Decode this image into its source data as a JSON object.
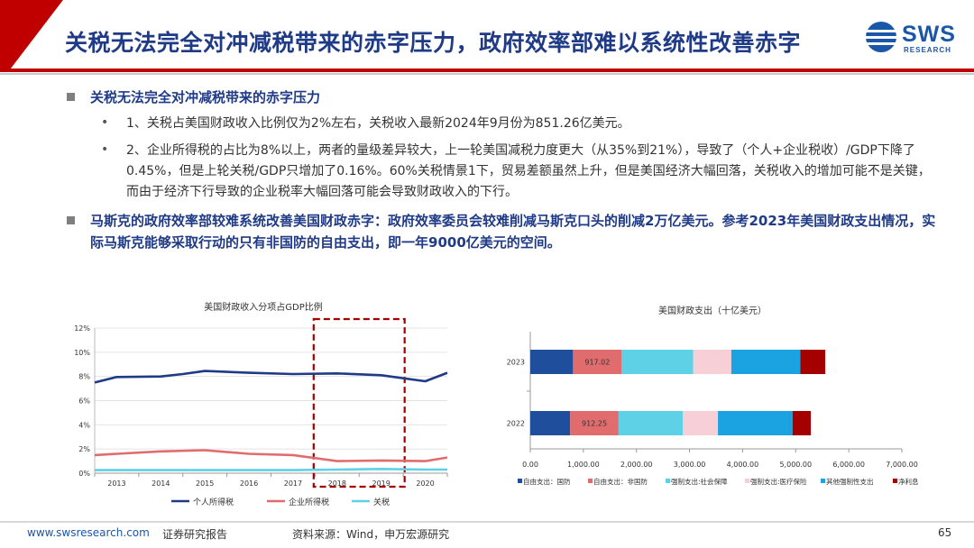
{
  "slide": {
    "title": "关税无法完全对冲减税带来的赤字压力，政府效率部难以系统性改善赤字",
    "logo_text": "SWS",
    "logo_sub": "RESEARCH",
    "page_number": "65",
    "footer_site": "www.swsresearch.com",
    "footer_type": "证券研究报告",
    "footer_source": "资料来源：Wind，申万宏源研究"
  },
  "bullets": [
    {
      "text": "关税无法完全对冲减税带来的赤字压力",
      "sub": [
        "1、关税占美国财政收入比例仅为2%左右，关税收入最新2024年9月份为851.26亿美元。",
        "2、企业所得税的占比为8%以上，两者的量级差异较大，上一轮美国减税力度更大（从35%到21%），导致了（个人+企业税收）/GDP下降了0.45%，但是上轮关税/GDP只增加了0.16%。60%关税情景1下，贸易差额虽然上升，但是美国经济大幅回落，关税收入的增加可能不是关键，而由于经济下行导致的企业税率大幅回落可能会导致财政收入的下行。"
      ]
    },
    {
      "text": "马斯克的政府效率部较难系统改善美国财政赤字：政府效率委员会较难削减马斯克口头的削减2万亿美元。参考2023年美国财政支出情况，实际马斯克能够采取行动的只有非国防的自由支出，即一年9000亿美元的空间。",
      "sub": []
    }
  ],
  "chart_data": [
    {
      "type": "line",
      "title": "美国财政收入分项占GDP比例",
      "x": [
        "2013",
        "2014",
        "2015",
        "2016",
        "2017",
        "2018",
        "2019",
        "2020"
      ],
      "ylim": [
        0,
        12
      ],
      "yticks": [
        "0%",
        "2%",
        "4%",
        "6%",
        "8%",
        "10%",
        "12%"
      ],
      "series": [
        {
          "name": "个人所得税",
          "color": "#1f3a86",
          "points": [
            [
              2012.5,
              7.5
            ],
            [
              2013,
              7.95
            ],
            [
              2014,
              8.0
            ],
            [
              2014.5,
              8.2
            ],
            [
              2015,
              8.45
            ],
            [
              2016,
              8.3
            ],
            [
              2017,
              8.2
            ],
            [
              2018,
              8.25
            ],
            [
              2019,
              8.1
            ],
            [
              2020,
              7.6
            ],
            [
              2020.5,
              8.3
            ]
          ]
        },
        {
          "name": "企业所得税",
          "color": "#e06c6e",
          "points": [
            [
              2012.5,
              1.5
            ],
            [
              2013,
              1.6
            ],
            [
              2014,
              1.8
            ],
            [
              2015,
              1.9
            ],
            [
              2016,
              1.6
            ],
            [
              2017,
              1.5
            ],
            [
              2018,
              1.0
            ],
            [
              2019,
              1.05
            ],
            [
              2020,
              1.0
            ],
            [
              2020.5,
              1.3
            ]
          ]
        },
        {
          "name": "关税",
          "color": "#5fd1e6",
          "points": [
            [
              2012.5,
              0.25
            ],
            [
              2013,
              0.25
            ],
            [
              2014,
              0.25
            ],
            [
              2015,
              0.25
            ],
            [
              2016,
              0.25
            ],
            [
              2017,
              0.25
            ],
            [
              2018,
              0.3
            ],
            [
              2019,
              0.35
            ],
            [
              2020,
              0.3
            ],
            [
              2020.5,
              0.3
            ]
          ]
        }
      ],
      "highlight_range": [
        2018,
        2019
      ]
    },
    {
      "type": "bar",
      "orientation": "horizontal",
      "stacked": true,
      "title": "美国财政支出（十亿美元）",
      "categories": [
        "2023",
        "2022"
      ],
      "xlim": [
        0,
        7000
      ],
      "xticks": [
        "0.00",
        "1,000.00",
        "2,000.00",
        "3,000.00",
        "4,000.00",
        "5,000.00",
        "6,000.00",
        "7,000.00"
      ],
      "series": [
        {
          "name": "自由支出：国防",
          "color": "#1f4e9c",
          "values": [
            805,
            751
          ]
        },
        {
          "name": "自由支出：非国防",
          "color": "#e06c6e",
          "values": [
            917.02,
            912.25
          ]
        },
        {
          "name": "强制支出:社会保障",
          "color": "#5fd1e6",
          "values": [
            1348,
            1212
          ]
        },
        {
          "name": "强制支出:医疗保险",
          "color": "#f7cfd6",
          "values": [
            717,
            660
          ]
        },
        {
          "name": "其他强制性支出",
          "color": "#1aa3e0",
          "values": [
            1300,
            1405
          ]
        },
        {
          "name": "净利息",
          "color": "#a40000",
          "values": [
            470,
            345
          ]
        }
      ],
      "data_labels": [
        "917.02",
        "912.25"
      ]
    }
  ]
}
